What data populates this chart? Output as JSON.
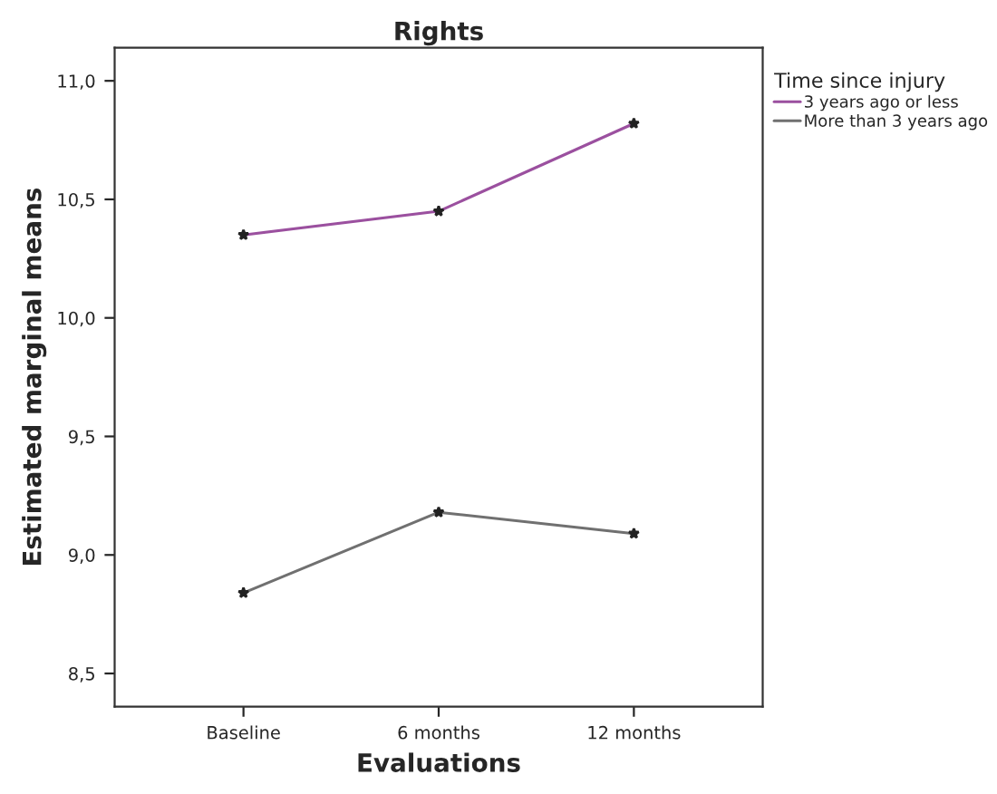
{
  "chart_data": {
    "type": "line",
    "title": "Rights",
    "xlabel": "Evaluations",
    "ylabel": "Estimated marginal means",
    "legend_title": "Time since injury",
    "categories": [
      "Baseline",
      "6 months",
      "12 months"
    ],
    "series": [
      {
        "name": "3 years ago or less",
        "color": "#9b509f",
        "values": [
          10.35,
          10.45,
          10.82
        ]
      },
      {
        "name": "More than 3 years ago",
        "color": "#707070",
        "values": [
          8.84,
          9.18,
          9.09
        ]
      }
    ],
    "ylim": [
      8.36,
      11.14
    ],
    "yticks": [
      {
        "value": 8.5,
        "label": "8,5"
      },
      {
        "value": 9.0,
        "label": "9,0"
      },
      {
        "value": 9.5,
        "label": "9,5"
      },
      {
        "value": 10.0,
        "label": "10,0"
      },
      {
        "value": 10.5,
        "label": "10,5"
      },
      {
        "value": 11.0,
        "label": "11,0"
      }
    ],
    "grid": false,
    "legend": "top right",
    "marker": "star",
    "line_style": "solid"
  }
}
